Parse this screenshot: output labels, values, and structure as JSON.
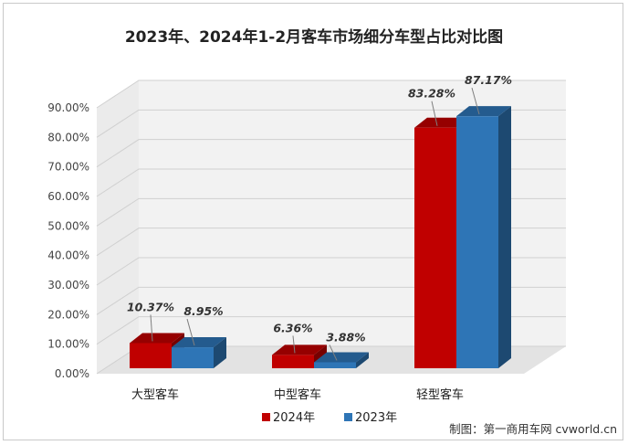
{
  "chart_data": {
    "type": "bar",
    "title": "2023年、2024年1-2月客车市场细分车型占比对比图",
    "categories": [
      "大型客车",
      "中型客车",
      "轻型客车"
    ],
    "series": [
      {
        "name": "2024年",
        "values": [
          10.37,
          6.36,
          83.28
        ],
        "labels": [
          "10.37%",
          "6.36%",
          "83.28%"
        ],
        "color": "#c00000"
      },
      {
        "name": "2023年",
        "values": [
          8.95,
          3.88,
          87.17
        ],
        "labels": [
          "8.95%",
          "3.88%",
          "87.17%"
        ],
        "color": "#2e75b6"
      }
    ],
    "yticks": [
      "0.00%",
      "10.00%",
      "20.00%",
      "30.00%",
      "40.00%",
      "50.00%",
      "60.00%",
      "70.00%",
      "80.00%",
      "90.00%"
    ],
    "ylim": [
      0,
      90
    ],
    "grid": true,
    "legend": "bottom",
    "style": "3d-column"
  },
  "credit": "制图：第一商用车网 cvworld.cn"
}
